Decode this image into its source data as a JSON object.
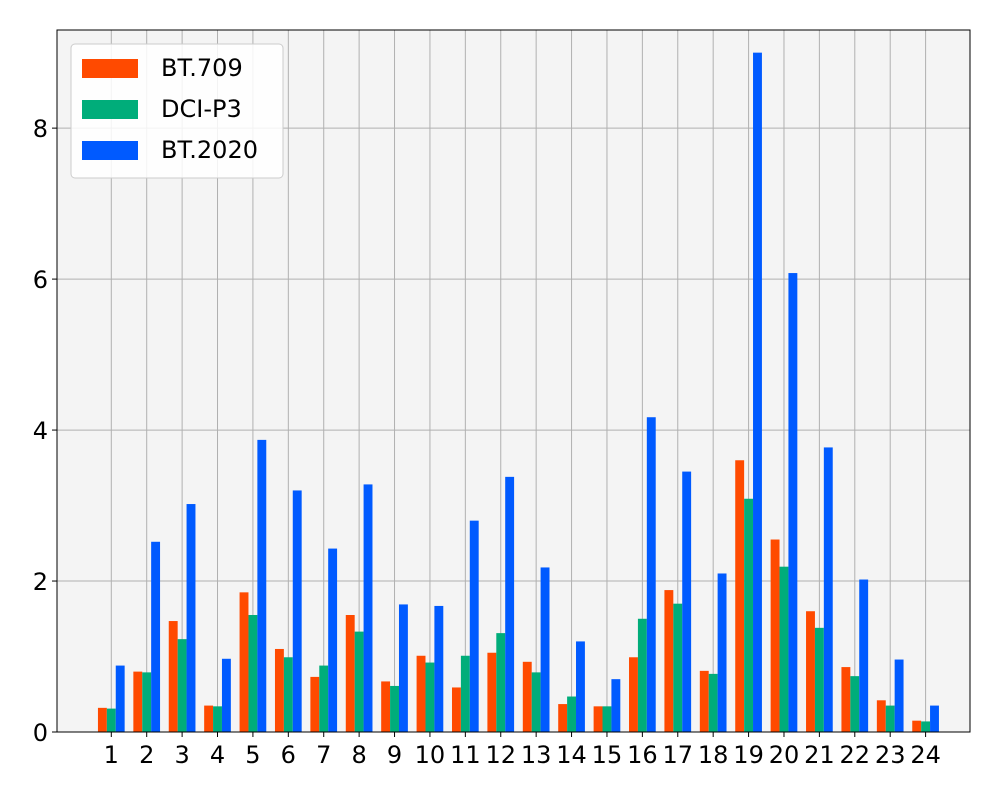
{
  "chart_data": {
    "type": "bar",
    "title": "",
    "xlabel": "",
    "ylabel": "",
    "categories": [
      "1",
      "2",
      "3",
      "4",
      "5",
      "6",
      "7",
      "8",
      "9",
      "10",
      "11",
      "12",
      "13",
      "14",
      "15",
      "16",
      "17",
      "18",
      "19",
      "20",
      "21",
      "22",
      "23",
      "24"
    ],
    "ylim": [
      0,
      9.3
    ],
    "yticks": [
      0,
      2,
      4,
      6,
      8
    ],
    "grid": true,
    "legend_position": "top-left",
    "series": [
      {
        "name": "BT.709",
        "color": "#ff4a00",
        "values": [
          0.32,
          0.8,
          1.47,
          0.35,
          1.85,
          1.1,
          0.73,
          1.55,
          0.67,
          1.01,
          0.59,
          1.05,
          0.93,
          0.37,
          0.34,
          0.99,
          1.88,
          0.81,
          3.6,
          2.55,
          1.6,
          0.86,
          0.42,
          0.15
        ]
      },
      {
        "name": "DCI-P3",
        "color": "#00ad7a",
        "values": [
          0.31,
          0.79,
          1.23,
          0.34,
          1.55,
          0.99,
          0.88,
          1.33,
          0.61,
          0.92,
          1.01,
          1.31,
          0.79,
          0.47,
          0.34,
          1.5,
          1.7,
          0.77,
          3.09,
          2.19,
          1.38,
          0.74,
          0.35,
          0.14
        ]
      },
      {
        "name": "BT.2020",
        "color": "#005aff",
        "values": [
          0.88,
          2.52,
          3.02,
          0.97,
          3.87,
          3.2,
          2.43,
          3.28,
          1.69,
          1.67,
          2.8,
          3.38,
          2.18,
          1.2,
          0.7,
          4.17,
          3.45,
          2.1,
          9.0,
          6.08,
          3.77,
          2.02,
          0.96,
          0.35
        ]
      }
    ]
  }
}
